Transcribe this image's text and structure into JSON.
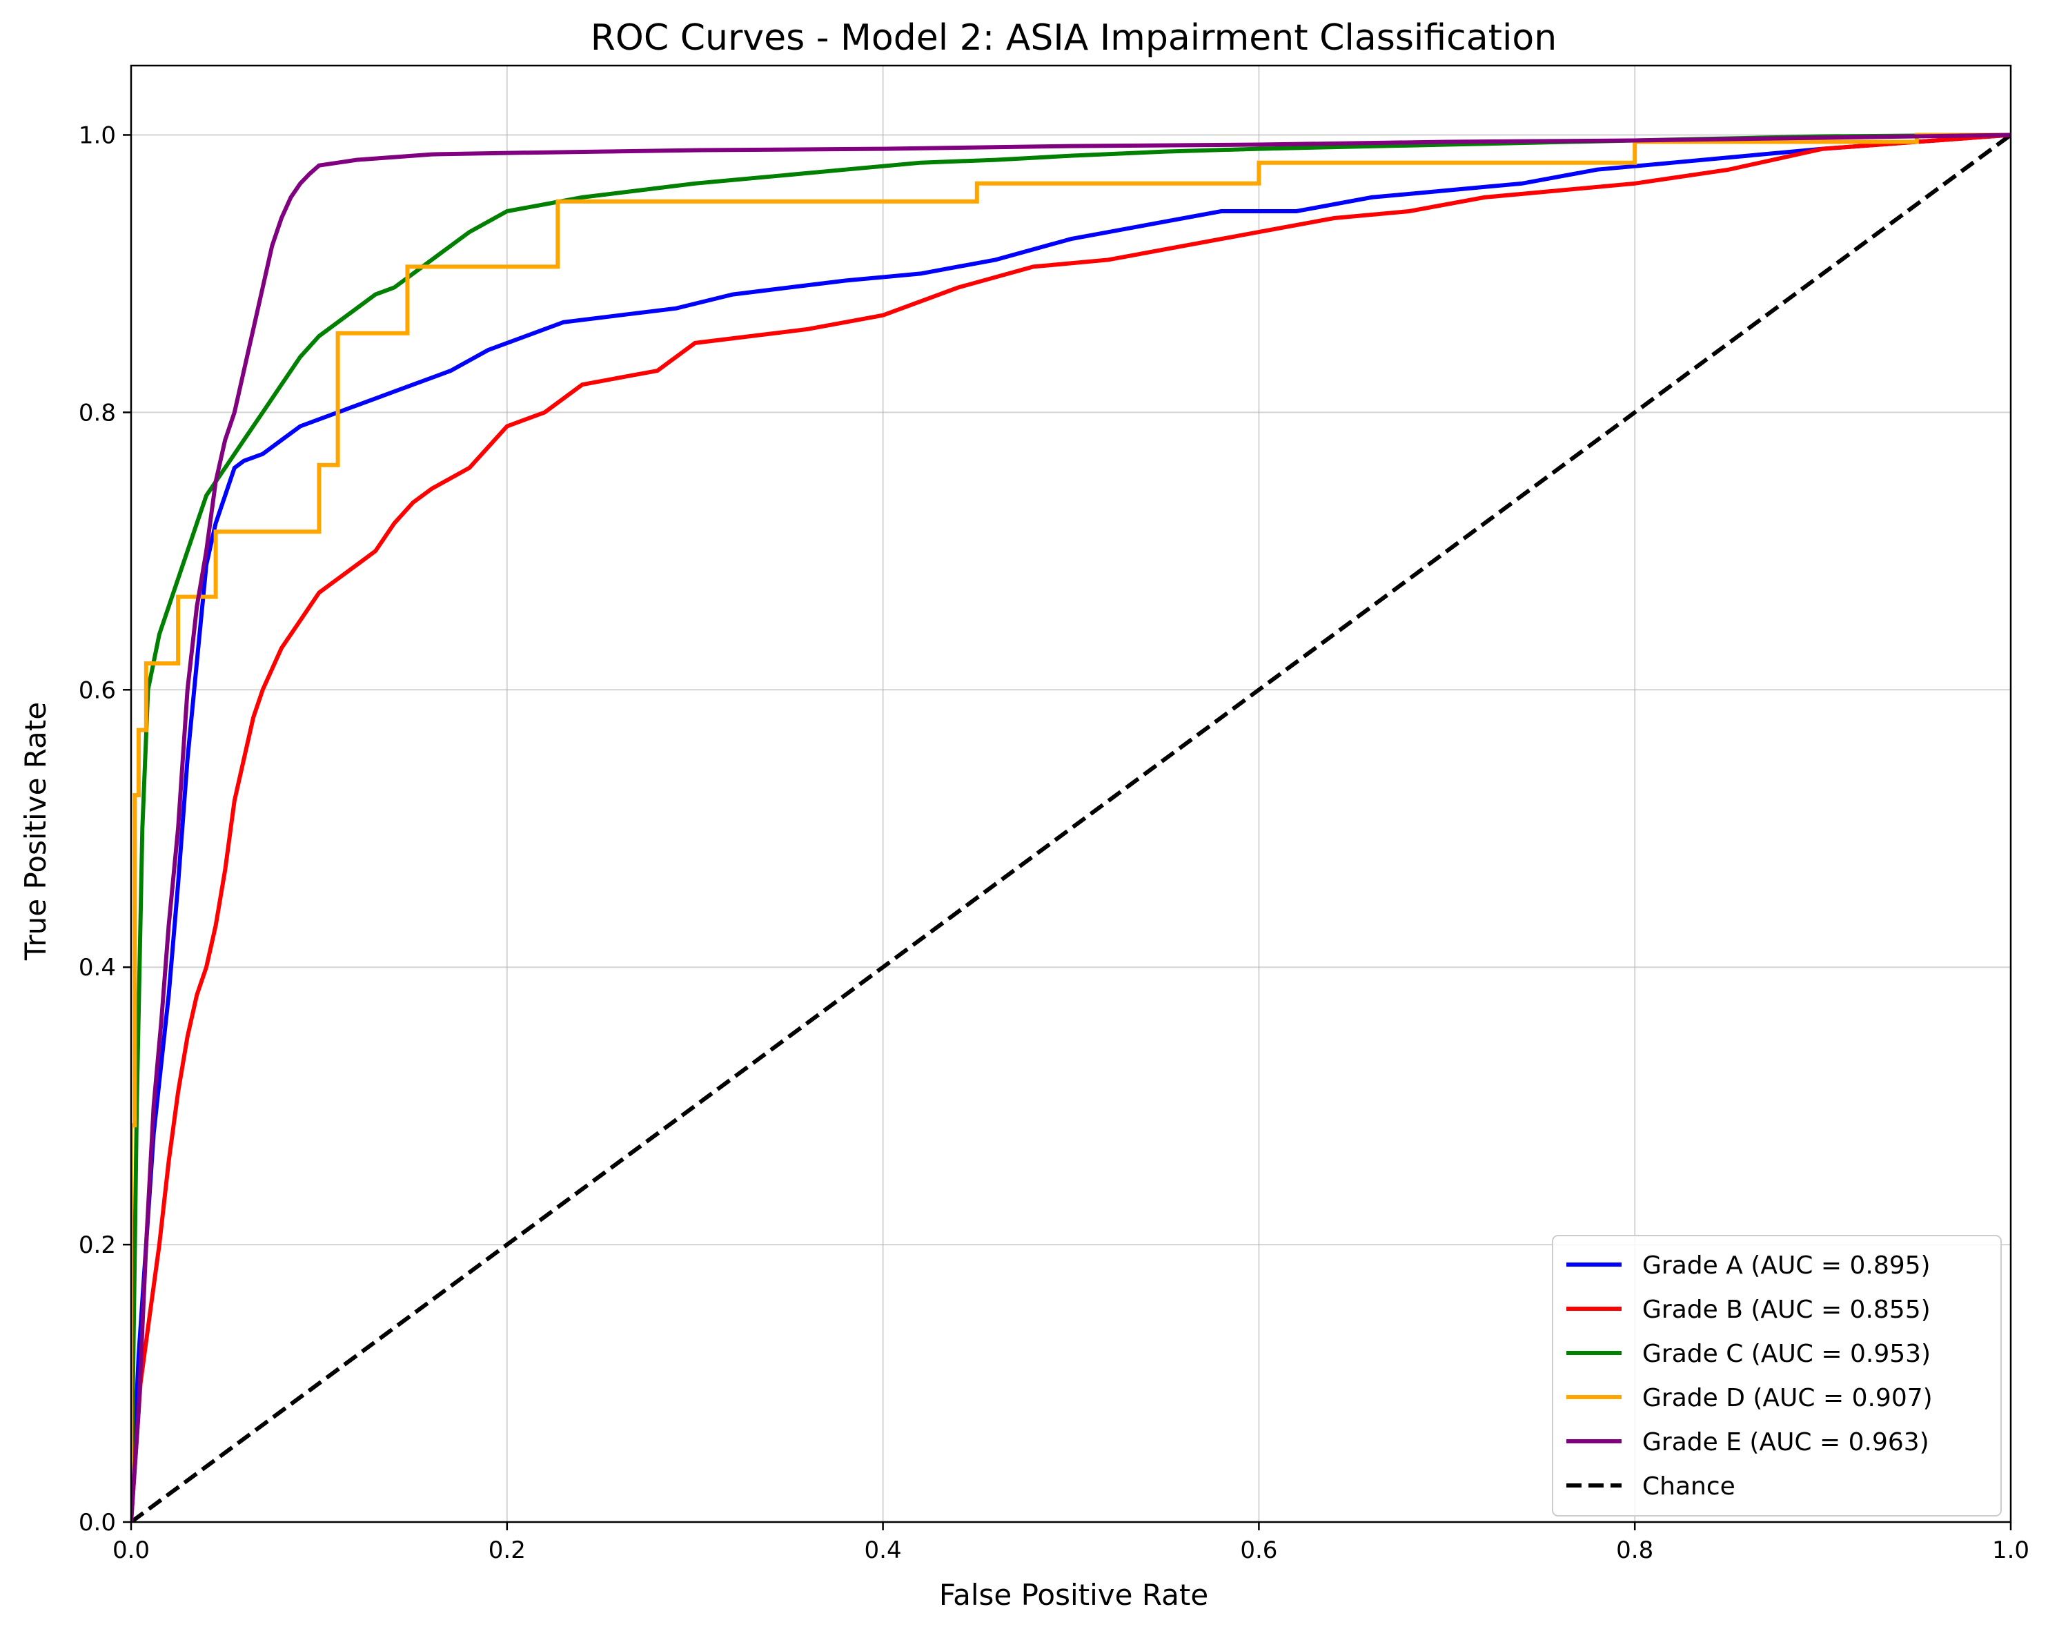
{
  "chart_data": {
    "type": "line",
    "title": "ROC Curves - Model 2: ASIA Impairment Classification",
    "xlabel": "False Positive Rate",
    "ylabel": "True Positive Rate",
    "xlim": [
      0.0,
      1.0
    ],
    "ylim": [
      0.0,
      1.05
    ],
    "x_ticks": [
      0.0,
      0.2,
      0.4,
      0.6,
      0.8,
      1.0
    ],
    "y_ticks": [
      0.0,
      0.2,
      0.4,
      0.6,
      0.8,
      1.0
    ],
    "x_tick_labels": [
      "0.0",
      "0.2",
      "0.4",
      "0.6",
      "0.8",
      "1.0"
    ],
    "y_tick_labels": [
      "0.0",
      "0.2",
      "0.4",
      "0.6",
      "0.8",
      "1.0"
    ],
    "grid": true,
    "legend_position": "lower-right",
    "series": [
      {
        "name": "Grade A (AUC = 0.895)",
        "color": "#0000ff",
        "dashed": false,
        "step": false,
        "x": [
          0.0,
          0.004,
          0.008,
          0.012,
          0.016,
          0.02,
          0.025,
          0.03,
          0.035,
          0.04,
          0.045,
          0.05,
          0.055,
          0.06,
          0.07,
          0.08,
          0.09,
          0.1,
          0.11,
          0.12,
          0.13,
          0.14,
          0.15,
          0.17,
          0.19,
          0.21,
          0.23,
          0.26,
          0.29,
          0.32,
          0.35,
          0.38,
          0.42,
          0.46,
          0.5,
          0.54,
          0.58,
          0.62,
          0.66,
          0.7,
          0.74,
          0.78,
          0.82,
          0.86,
          0.9,
          0.95,
          1.0
        ],
        "y": [
          0.0,
          0.12,
          0.2,
          0.28,
          0.33,
          0.38,
          0.46,
          0.55,
          0.62,
          0.69,
          0.72,
          0.74,
          0.76,
          0.765,
          0.77,
          0.78,
          0.79,
          0.795,
          0.8,
          0.805,
          0.81,
          0.815,
          0.82,
          0.83,
          0.845,
          0.855,
          0.865,
          0.87,
          0.875,
          0.885,
          0.89,
          0.895,
          0.9,
          0.91,
          0.925,
          0.935,
          0.945,
          0.945,
          0.955,
          0.96,
          0.965,
          0.975,
          0.98,
          0.985,
          0.99,
          0.995,
          1.0
        ]
      },
      {
        "name": "Grade B (AUC = 0.855)",
        "color": "#ff0000",
        "dashed": false,
        "step": false,
        "x": [
          0.0,
          0.005,
          0.01,
          0.015,
          0.02,
          0.025,
          0.03,
          0.035,
          0.04,
          0.045,
          0.05,
          0.055,
          0.06,
          0.065,
          0.07,
          0.08,
          0.09,
          0.1,
          0.11,
          0.12,
          0.13,
          0.14,
          0.15,
          0.16,
          0.18,
          0.2,
          0.22,
          0.24,
          0.26,
          0.28,
          0.3,
          0.33,
          0.36,
          0.4,
          0.44,
          0.48,
          0.52,
          0.56,
          0.6,
          0.64,
          0.68,
          0.72,
          0.76,
          0.8,
          0.85,
          0.9,
          0.95,
          1.0
        ],
        "y": [
          0.0,
          0.1,
          0.15,
          0.2,
          0.26,
          0.31,
          0.35,
          0.38,
          0.4,
          0.43,
          0.47,
          0.52,
          0.55,
          0.58,
          0.6,
          0.63,
          0.65,
          0.67,
          0.68,
          0.69,
          0.7,
          0.72,
          0.735,
          0.745,
          0.76,
          0.79,
          0.8,
          0.82,
          0.825,
          0.83,
          0.85,
          0.855,
          0.86,
          0.87,
          0.89,
          0.905,
          0.91,
          0.92,
          0.93,
          0.94,
          0.945,
          0.955,
          0.96,
          0.965,
          0.975,
          0.99,
          0.995,
          1.0
        ]
      },
      {
        "name": "Grade C (AUC = 0.953)",
        "color": "#008000",
        "dashed": false,
        "step": false,
        "x": [
          0.0,
          0.003,
          0.006,
          0.009,
          0.012,
          0.015,
          0.02,
          0.025,
          0.03,
          0.035,
          0.04,
          0.05,
          0.06,
          0.07,
          0.08,
          0.09,
          0.1,
          0.11,
          0.12,
          0.13,
          0.14,
          0.15,
          0.16,
          0.18,
          0.2,
          0.22,
          0.24,
          0.27,
          0.3,
          0.34,
          0.38,
          0.42,
          0.46,
          0.5,
          0.55,
          0.6,
          0.7,
          0.8,
          0.9,
          1.0
        ],
        "y": [
          0.0,
          0.3,
          0.5,
          0.6,
          0.62,
          0.64,
          0.66,
          0.68,
          0.7,
          0.72,
          0.74,
          0.76,
          0.78,
          0.8,
          0.82,
          0.84,
          0.855,
          0.865,
          0.875,
          0.885,
          0.89,
          0.9,
          0.91,
          0.93,
          0.945,
          0.95,
          0.955,
          0.96,
          0.965,
          0.97,
          0.975,
          0.98,
          0.982,
          0.985,
          0.988,
          0.99,
          0.993,
          0.996,
          0.999,
          1.0
        ]
      },
      {
        "name": "Grade D (AUC = 0.907)",
        "color": "#ffa500",
        "dashed": false,
        "step": true,
        "x": [
          0.0,
          0.002,
          0.004,
          0.008,
          0.025,
          0.045,
          0.1,
          0.11,
          0.147,
          0.227,
          0.375,
          0.45,
          0.6,
          0.8,
          0.95,
          1.0
        ],
        "y": [
          0.0,
          0.286,
          0.524,
          0.571,
          0.619,
          0.667,
          0.714,
          0.762,
          0.857,
          0.905,
          0.952,
          0.952,
          0.965,
          0.98,
          0.995,
          1.0
        ]
      },
      {
        "name": "Grade E (AUC = 0.963)",
        "color": "#800080",
        "dashed": false,
        "step": false,
        "x": [
          0.0,
          0.004,
          0.008,
          0.012,
          0.016,
          0.02,
          0.025,
          0.03,
          0.035,
          0.04,
          0.045,
          0.05,
          0.055,
          0.06,
          0.065,
          0.07,
          0.075,
          0.08,
          0.085,
          0.09,
          0.095,
          0.1,
          0.11,
          0.12,
          0.14,
          0.16,
          0.2,
          0.25,
          0.3,
          0.4,
          0.5,
          0.6,
          0.7,
          0.8,
          0.9,
          1.0
        ],
        "y": [
          0.0,
          0.08,
          0.2,
          0.3,
          0.36,
          0.43,
          0.5,
          0.6,
          0.66,
          0.7,
          0.75,
          0.78,
          0.8,
          0.83,
          0.86,
          0.89,
          0.92,
          0.94,
          0.955,
          0.965,
          0.972,
          0.978,
          0.98,
          0.982,
          0.984,
          0.986,
          0.987,
          0.988,
          0.989,
          0.99,
          0.992,
          0.993,
          0.995,
          0.996,
          0.998,
          1.0
        ]
      },
      {
        "name": "Chance",
        "color": "#000000",
        "dashed": true,
        "step": false,
        "x": [
          0.0,
          1.0
        ],
        "y": [
          0.0,
          1.0
        ]
      }
    ]
  }
}
